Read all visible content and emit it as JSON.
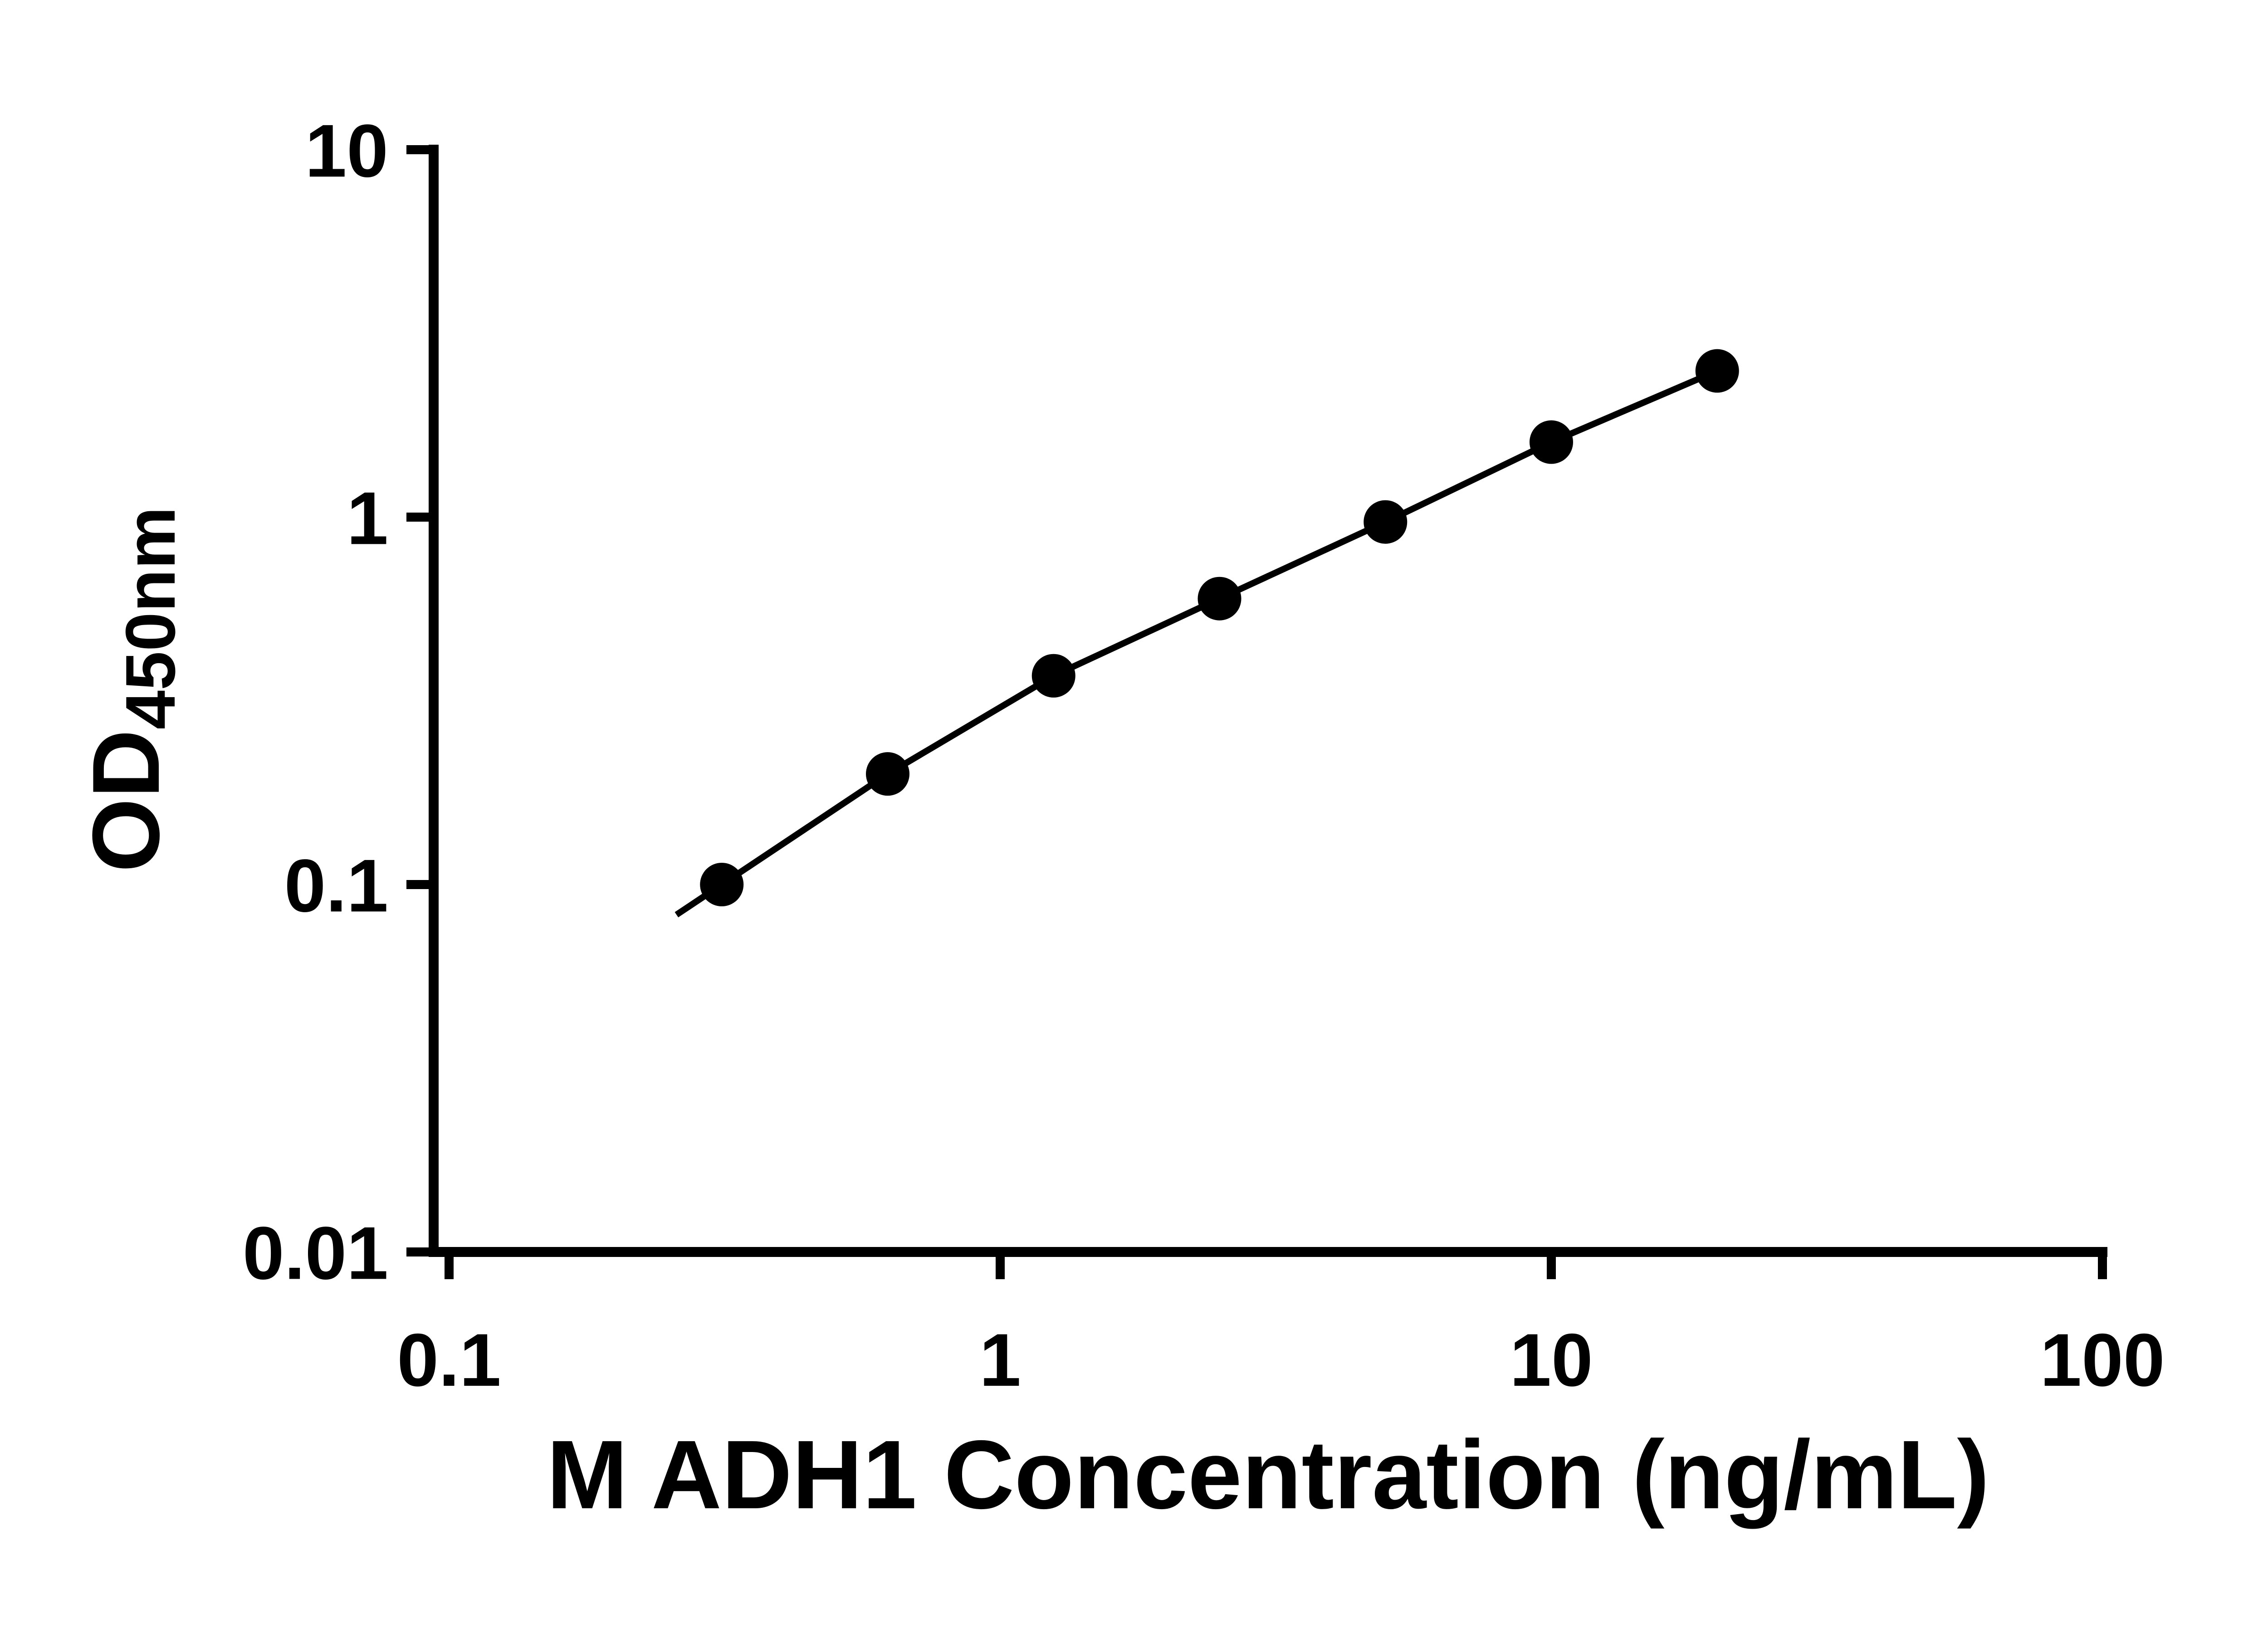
{
  "chart_data": {
    "type": "scatter",
    "title": "",
    "xlabel": "M ADH1 Concentration (ng/mL)",
    "ylabel": "OD450nm",
    "ylabel_main": "OD",
    "ylabel_subscript": "450nm",
    "x_scale": "log",
    "y_scale": "log",
    "xlim": [
      0.1,
      100
    ],
    "ylim": [
      0.01,
      10
    ],
    "grid": false,
    "legend": "none",
    "axis_color": "#000000",
    "x_ticks": [
      {
        "value": 0.1,
        "label": "0.1"
      },
      {
        "value": 1,
        "label": "1"
      },
      {
        "value": 10,
        "label": "10"
      },
      {
        "value": 100,
        "label": "100"
      }
    ],
    "y_ticks": [
      {
        "value": 0.01,
        "label": "0.01"
      },
      {
        "value": 0.1,
        "label": "0.1"
      },
      {
        "value": 1,
        "label": "1"
      },
      {
        "value": 10,
        "label": "10"
      }
    ],
    "series": [
      {
        "marker": "circle",
        "marker_color": "#000000",
        "line_color": "#000000",
        "points": [
          {
            "x": 0.3125,
            "y": 0.1
          },
          {
            "x": 0.625,
            "y": 0.2
          },
          {
            "x": 1.25,
            "y": 0.37
          },
          {
            "x": 2.5,
            "y": 0.6
          },
          {
            "x": 5,
            "y": 0.97
          },
          {
            "x": 10,
            "y": 1.6
          },
          {
            "x": 20,
            "y": 2.5
          }
        ]
      }
    ]
  }
}
